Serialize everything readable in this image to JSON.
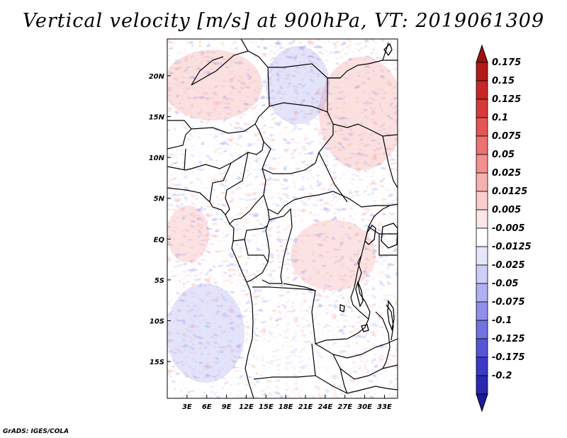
{
  "title": "Vertical velocity [m/s] at 900hPa, VT: 2019061309",
  "credit": "GrADS: IGES/COLA",
  "map": {
    "lon_range": [
      0,
      35
    ],
    "lat_range": [
      -19.5,
      24.5
    ],
    "lat_ticks": [
      {
        "value": 20,
        "label": "20N"
      },
      {
        "value": 15,
        "label": "15N"
      },
      {
        "value": 10,
        "label": "10N"
      },
      {
        "value": 5,
        "label": "5N"
      },
      {
        "value": 0,
        "label": "EQ"
      },
      {
        "value": -5,
        "label": "5S"
      },
      {
        "value": -10,
        "label": "10S"
      },
      {
        "value": -15,
        "label": "15S"
      }
    ],
    "lon_ticks": [
      {
        "value": 3,
        "label": "3E"
      },
      {
        "value": 6,
        "label": "6E"
      },
      {
        "value": 9,
        "label": "9E"
      },
      {
        "value": 12,
        "label": "12E"
      },
      {
        "value": 15,
        "label": "15E"
      },
      {
        "value": 18,
        "label": "18E"
      },
      {
        "value": 21,
        "label": "21E"
      },
      {
        "value": 24,
        "label": "24E"
      },
      {
        "value": 27,
        "label": "27E"
      },
      {
        "value": 30,
        "label": "30E"
      },
      {
        "value": 33,
        "label": "33E"
      }
    ]
  },
  "colorbar": {
    "levels": [
      {
        "label": "0.175",
        "color": "#b31a1a"
      },
      {
        "label": "0.15",
        "color": "#c62828"
      },
      {
        "label": "0.125",
        "color": "#d83a3a"
      },
      {
        "label": "0.1",
        "color": "#e55555"
      },
      {
        "label": "0.075",
        "color": "#ec7272"
      },
      {
        "label": "0.05",
        "color": "#f29090"
      },
      {
        "label": "0.025",
        "color": "#f7b0b0"
      },
      {
        "label": "0.0125",
        "color": "#fbcdcd"
      },
      {
        "label": "0.005",
        "color": "#fde6e6"
      },
      {
        "label": "-0.005",
        "color": "#ffffff"
      },
      {
        "label": "-0.0125",
        "color": "#e6e6fb"
      },
      {
        "label": "-0.025",
        "color": "#cdcdf7"
      },
      {
        "label": "-0.05",
        "color": "#b0b0f2"
      },
      {
        "label": "-0.075",
        "color": "#9090ec"
      },
      {
        "label": "-0.1",
        "color": "#7272e2"
      },
      {
        "label": "-0.125",
        "color": "#5555d6"
      },
      {
        "label": "-0.175",
        "color": "#3a3ac6"
      },
      {
        "label": "-0.2",
        "color": "#2828b0"
      }
    ],
    "top_arrow_color": "#a01010",
    "bottom_arrow_color": "#1a1aa0"
  }
}
